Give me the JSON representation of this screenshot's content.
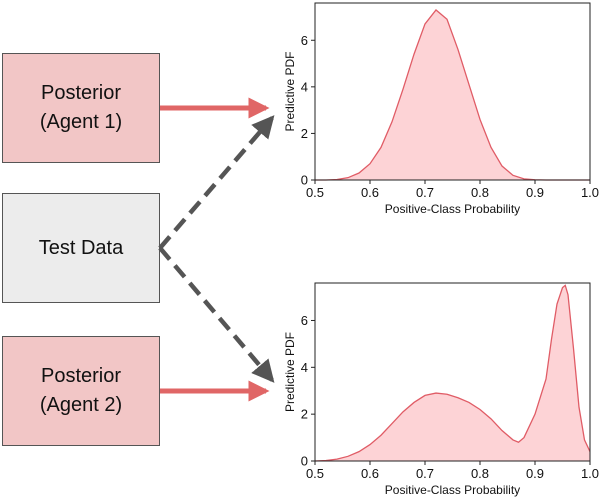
{
  "colors": {
    "posterior_box_fill": "#f2c6c6",
    "test_box_fill": "#ececec",
    "solid_arrow": "#e06666",
    "dashed_arrow": "#555555",
    "density_fill": "#fdd3d6",
    "density_line": "#e05c66"
  },
  "boxes": {
    "agent1": {
      "line1": "Posterior",
      "line2": "(Agent 1)"
    },
    "test": {
      "label": "Test Data"
    },
    "agent2": {
      "line1": "Posterior",
      "line2": "(Agent 2)"
    }
  },
  "chart_data": [
    {
      "type": "area",
      "xlabel": "Positive-Class Probability",
      "ylabel": "Predictive PDF",
      "xlim": [
        0.5,
        1.0
      ],
      "ylim": [
        0,
        7.6
      ],
      "xticks": [
        "0.5",
        "0.6",
        "0.7",
        "0.8",
        "0.9",
        "1.0"
      ],
      "yticks": [
        "0",
        "2",
        "4",
        "6"
      ],
      "x": [
        0.5,
        0.52,
        0.54,
        0.56,
        0.58,
        0.6,
        0.62,
        0.64,
        0.66,
        0.68,
        0.7,
        0.72,
        0.74,
        0.76,
        0.78,
        0.8,
        0.82,
        0.84,
        0.86,
        0.88,
        0.9,
        0.92,
        0.94,
        0.96,
        0.98,
        1.0
      ],
      "y": [
        0,
        0,
        0.02,
        0.1,
        0.3,
        0.7,
        1.4,
        2.5,
        3.9,
        5.4,
        6.7,
        7.3,
        6.9,
        5.6,
        4.1,
        2.6,
        1.4,
        0.6,
        0.2,
        0.05,
        0.01,
        0,
        0,
        0,
        0,
        0
      ]
    },
    {
      "type": "area",
      "xlabel": "Positive-Class Probability",
      "ylabel": "Predictive PDF",
      "xlim": [
        0.5,
        1.0
      ],
      "ylim": [
        0,
        7.6
      ],
      "xticks": [
        "0.5",
        "0.6",
        "0.7",
        "0.8",
        "0.9",
        "1.0"
      ],
      "yticks": [
        "0",
        "2",
        "4",
        "6"
      ],
      "x": [
        0.5,
        0.52,
        0.54,
        0.56,
        0.58,
        0.6,
        0.62,
        0.64,
        0.66,
        0.68,
        0.7,
        0.72,
        0.74,
        0.76,
        0.78,
        0.8,
        0.82,
        0.84,
        0.86,
        0.87,
        0.88,
        0.9,
        0.92,
        0.93,
        0.94,
        0.95,
        0.955,
        0.96,
        0.97,
        0.98,
        0.99,
        1.0
      ],
      "y": [
        0,
        0.02,
        0.08,
        0.2,
        0.4,
        0.7,
        1.1,
        1.6,
        2.1,
        2.5,
        2.8,
        2.9,
        2.85,
        2.7,
        2.5,
        2.2,
        1.8,
        1.3,
        0.9,
        0.8,
        1.0,
        2.0,
        3.5,
        5.2,
        6.7,
        7.4,
        7.5,
        7.1,
        4.8,
        2.3,
        0.9,
        0.4
      ]
    }
  ]
}
